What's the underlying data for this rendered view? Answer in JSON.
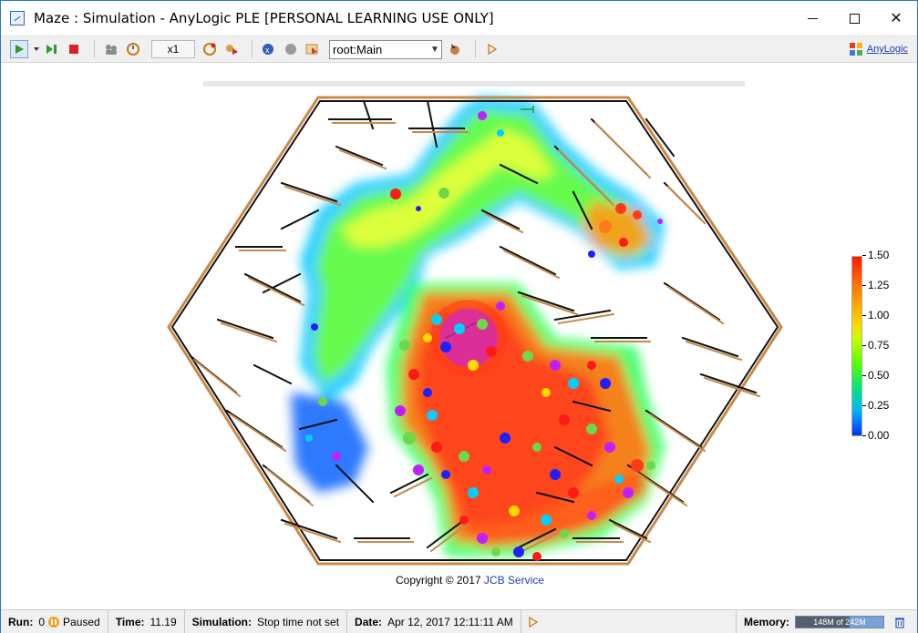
{
  "window": {
    "title": "Maze : Simulation - AnyLogic PLE [PERSONAL LEARNING USE ONLY]",
    "controls": [
      "minimize-icon",
      "maximize-icon",
      "close-icon"
    ]
  },
  "toolbar": {
    "speed": "x1",
    "agent_select": "root:Main",
    "brand_link": "AnyLogic",
    "icons": [
      "run-icon",
      "dropdown-arrow-icon",
      "step-icon",
      "stop-icon",
      "agents-icon",
      "speed-down-icon",
      "speed-up-icon",
      "camera-icon",
      "experiment-icon",
      "model-icon",
      "navigate-icon",
      "pointer-icon",
      "play-small-icon"
    ]
  },
  "colors": {
    "title_border": "#2b78c5",
    "link": "#1a3fb3",
    "maze_wall_dark": "#111111",
    "maze_wall_light": "#c8894a",
    "paused": "#f0a020"
  },
  "legend": {
    "ticks": [
      "1.50",
      "1.25",
      "1.00",
      "0.75",
      "0.50",
      "0.25",
      "0.00"
    ],
    "max": 1.5,
    "min": 0
  },
  "copyright": {
    "text": "Copyright © 2017",
    "link": "JCB Service"
  },
  "status": {
    "run_label": "Run:",
    "run_value": "0",
    "run_state": "Paused",
    "time_label": "Time:",
    "time_value": "11.19",
    "sim_label": "Simulation:",
    "sim_value": "Stop time not set",
    "date_label": "Date:",
    "date_value": "Apr 12, 2017 12:11:11 AM",
    "memory_label": "Memory:",
    "memory_text": "148M of 242M",
    "memory_fraction": 0.61
  }
}
